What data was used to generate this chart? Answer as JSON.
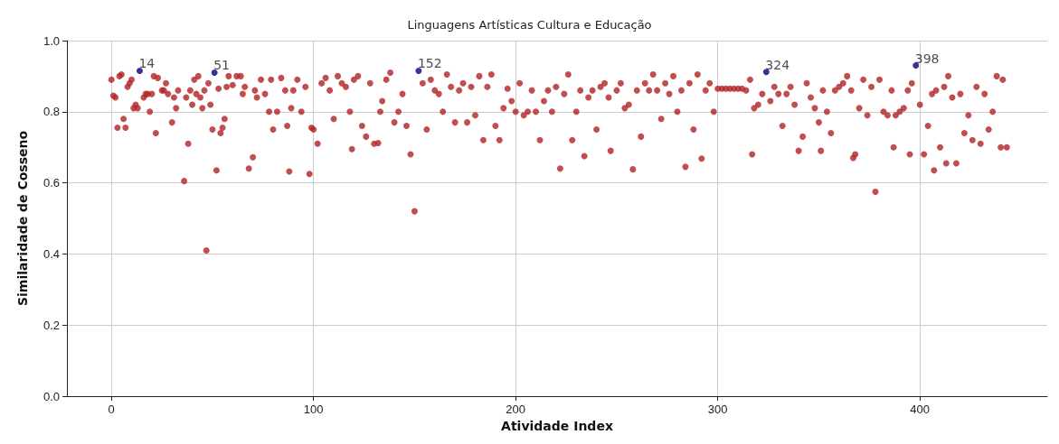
{
  "chart_data": {
    "type": "scatter",
    "title": "Linguagens Artísticas Cultura e Educação",
    "xlabel": "Atividade Index",
    "ylabel": "Similaridade de Cosseno",
    "xlim": [
      -22,
      463
    ],
    "ylim": [
      0,
      1
    ],
    "xticks": [
      0,
      100,
      200,
      300,
      400
    ],
    "yticks": [
      {
        "value": 0,
        "label": "0.0"
      },
      {
        "value": 0.2,
        "label": "0.2"
      },
      {
        "value": 0.4,
        "label": "0.4"
      },
      {
        "value": 0.6,
        "label": "0.6"
      },
      {
        "value": 0.8,
        "label": "0.8"
      },
      {
        "value": 1,
        "label": "1.0"
      }
    ],
    "grid": true,
    "marker": "circle",
    "series": [
      {
        "color": "#b22222",
        "x": [
          0,
          1,
          2,
          3,
          4,
          5,
          6,
          7,
          8,
          9,
          10,
          11,
          12,
          13,
          16,
          17,
          18,
          19,
          20,
          21,
          22,
          23,
          25,
          26,
          27,
          28,
          30,
          31,
          32,
          33,
          36,
          37,
          38,
          39,
          40,
          41,
          42,
          43,
          44,
          45,
          46,
          47,
          48,
          49,
          50,
          52,
          53,
          54,
          55,
          56,
          57,
          58,
          60,
          62,
          64,
          65,
          66,
          68,
          70,
          71,
          72,
          74,
          76,
          78,
          79,
          80,
          82,
          84,
          86,
          87,
          88,
          89,
          90,
          92,
          94,
          96,
          98,
          99,
          100,
          102,
          104,
          106,
          108,
          110,
          112,
          114,
          116,
          118,
          119,
          120,
          122,
          124,
          126,
          128,
          130,
          132,
          133,
          134,
          136,
          138,
          140,
          142,
          144,
          146,
          148,
          150,
          154,
          156,
          158,
          160,
          162,
          164,
          166,
          168,
          170,
          172,
          174,
          176,
          178,
          180,
          182,
          184,
          186,
          188,
          190,
          192,
          194,
          196,
          198,
          200,
          202,
          204,
          206,
          208,
          210,
          212,
          214,
          216,
          218,
          220,
          222,
          224,
          226,
          228,
          230,
          232,
          234,
          236,
          238,
          240,
          242,
          244,
          246,
          247,
          250,
          252,
          254,
          256,
          258,
          260,
          262,
          264,
          266,
          268,
          270,
          272,
          274,
          276,
          278,
          280,
          282,
          284,
          286,
          288,
          290,
          292,
          294,
          296,
          298,
          300,
          302,
          304,
          306,
          308,
          310,
          312,
          314,
          316,
          317,
          318,
          320,
          322,
          326,
          328,
          330,
          332,
          334,
          336,
          338,
          340,
          342,
          344,
          346,
          348,
          350,
          351,
          352,
          354,
          356,
          358,
          360,
          362,
          364,
          366,
          367,
          368,
          370,
          372,
          374,
          376,
          378,
          380,
          382,
          384,
          386,
          387,
          388,
          390,
          392,
          394,
          395,
          396,
          400,
          402,
          404,
          406,
          407,
          408,
          410,
          412,
          413,
          414,
          416,
          418,
          420,
          422,
          424,
          426,
          428,
          430,
          432,
          434,
          436,
          438,
          440,
          441,
          443
        ],
        "values": [
          0.89,
          0.845,
          0.84,
          0.755,
          0.9,
          0.905,
          0.78,
          0.755,
          0.87,
          0.88,
          0.89,
          0.81,
          0.82,
          0.81,
          0.84,
          0.85,
          0.85,
          0.8,
          0.85,
          0.9,
          0.74,
          0.895,
          0.86,
          0.86,
          0.88,
          0.85,
          0.77,
          0.84,
          0.81,
          0.86,
          0.605,
          0.84,
          0.71,
          0.86,
          0.82,
          0.89,
          0.85,
          0.9,
          0.84,
          0.81,
          0.86,
          0.41,
          0.88,
          0.82,
          0.75,
          0.635,
          0.865,
          0.74,
          0.755,
          0.78,
          0.87,
          0.9,
          0.875,
          0.9,
          0.9,
          0.85,
          0.87,
          0.64,
          0.672,
          0.86,
          0.84,
          0.89,
          0.85,
          0.8,
          0.89,
          0.75,
          0.8,
          0.895,
          0.86,
          0.76,
          0.632,
          0.81,
          0.86,
          0.89,
          0.8,
          0.87,
          0.625,
          0.755,
          0.75,
          0.71,
          0.88,
          0.895,
          0.86,
          0.78,
          0.9,
          0.88,
          0.87,
          0.8,
          0.695,
          0.89,
          0.9,
          0.76,
          0.73,
          0.88,
          0.71,
          0.712,
          0.8,
          0.83,
          0.89,
          0.91,
          0.77,
          0.8,
          0.85,
          0.76,
          0.68,
          0.52,
          0.88,
          0.75,
          0.89,
          0.86,
          0.85,
          0.8,
          0.905,
          0.87,
          0.77,
          0.86,
          0.88,
          0.77,
          0.87,
          0.79,
          0.9,
          0.72,
          0.87,
          0.905,
          0.76,
          0.72,
          0.81,
          0.865,
          0.83,
          0.8,
          0.88,
          0.79,
          0.8,
          0.86,
          0.8,
          0.72,
          0.83,
          0.86,
          0.8,
          0.87,
          0.64,
          0.85,
          0.905,
          0.72,
          0.8,
          0.86,
          0.675,
          0.84,
          0.86,
          0.75,
          0.87,
          0.88,
          0.84,
          0.69,
          0.86,
          0.88,
          0.81,
          0.82,
          0.638,
          0.86,
          0.73,
          0.88,
          0.86,
          0.905,
          0.86,
          0.78,
          0.88,
          0.85,
          0.9,
          0.8,
          0.86,
          0.645,
          0.88,
          0.75,
          0.905,
          0.668,
          0.86,
          0.88,
          0.8,
          0.865,
          0.865,
          0.865,
          0.865,
          0.865,
          0.865,
          0.865,
          0.86,
          0.89,
          0.68,
          0.81,
          0.82,
          0.85,
          0.83,
          0.87,
          0.85,
          0.76,
          0.85,
          0.87,
          0.82,
          0.69,
          0.73,
          0.88,
          0.84,
          0.81,
          0.77,
          0.69,
          0.86,
          0.8,
          0.74,
          0.86,
          0.87,
          0.88,
          0.9,
          0.86,
          0.67,
          0.68,
          0.81,
          0.89,
          0.79,
          0.87,
          0.575,
          0.89,
          0.8,
          0.79,
          0.86,
          0.7,
          0.79,
          0.8,
          0.81,
          0.86,
          0.68,
          0.88,
          0.82,
          0.68,
          0.76,
          0.85,
          0.635,
          0.86,
          0.7,
          0.87,
          0.655,
          0.9,
          0.84,
          0.655,
          0.85,
          0.74,
          0.79,
          0.72,
          0.87,
          0.71,
          0.85,
          0.75,
          0.8,
          0.9,
          0.7,
          0.89,
          0.7
        ]
      },
      {
        "color": "#000080",
        "x": [
          14,
          51,
          152,
          324,
          398
        ],
        "values": [
          0.915,
          0.91,
          0.915,
          0.912,
          0.93
        ]
      }
    ],
    "annotations": [
      {
        "text": "14",
        "x": 14,
        "y": 0.915
      },
      {
        "text": "51",
        "x": 51,
        "y": 0.91
      },
      {
        "text": "152",
        "x": 152,
        "y": 0.915
      },
      {
        "text": "324",
        "x": 324,
        "y": 0.912
      },
      {
        "text": "398",
        "x": 398,
        "y": 0.93
      }
    ]
  }
}
